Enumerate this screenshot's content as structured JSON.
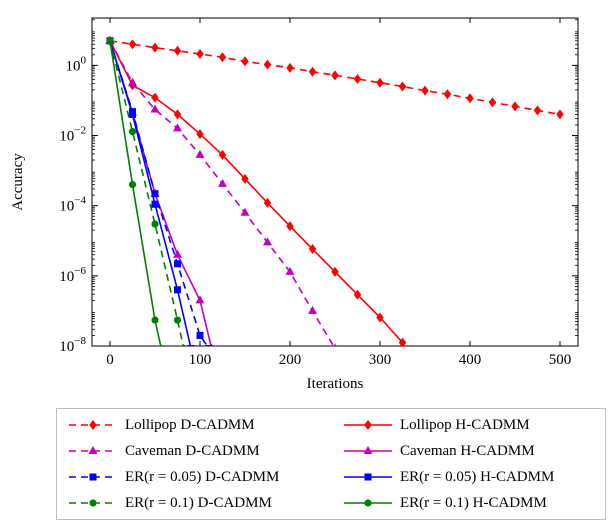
{
  "chart_data": {
    "type": "line",
    "xlabel": "Iterations",
    "ylabel": "Accuracy",
    "xlim": [
      -20,
      520
    ],
    "ylim_log10": [
      -8,
      1.35
    ],
    "y_scale": "log",
    "x_ticks": [
      0,
      100,
      200,
      300,
      400,
      500
    ],
    "x_tick_labels": [
      "0",
      "100",
      "200",
      "300",
      "400",
      "500"
    ],
    "y_ticks_log10": [
      0,
      -2,
      -4,
      -6,
      -8
    ],
    "y_tick_labels": [
      {
        "base": "10",
        "exp": "0"
      },
      {
        "base": "10",
        "exp": "−2"
      },
      {
        "base": "10",
        "exp": "−4"
      },
      {
        "base": "10",
        "exp": "−6"
      },
      {
        "base": "10",
        "exp": "−8"
      }
    ],
    "grid": false,
    "legend_position": "below",
    "series": [
      {
        "name": "Lollipop D-CADMM",
        "color": "#ff0000",
        "dash": true,
        "marker": "diamond",
        "x": [
          0,
          25,
          50,
          75,
          100,
          125,
          150,
          175,
          200,
          225,
          250,
          275,
          300,
          325,
          350,
          375,
          400,
          425,
          450,
          475,
          500
        ],
        "y": [
          5,
          4,
          3.2,
          2.6,
          2.1,
          1.7,
          1.3,
          1.05,
          0.85,
          0.66,
          0.52,
          0.41,
          0.32,
          0.25,
          0.19,
          0.15,
          0.115,
          0.088,
          0.068,
          0.052,
          0.04
        ]
      },
      {
        "name": "Lollipop H-CADMM",
        "color": "#ff0000",
        "dash": false,
        "marker": "diamond",
        "x": [
          0,
          25,
          50,
          75,
          100,
          125,
          150,
          175,
          200,
          225,
          250,
          275,
          300,
          325
        ],
        "y": [
          5,
          0.27,
          0.12,
          0.04,
          0.011,
          0.0028,
          0.00058,
          0.00012,
          2.6e-05,
          5.8e-06,
          1.3e-06,
          2.9e-07,
          6.5e-08,
          1.25e-08
        ]
      },
      {
        "name": "Caveman D-CADMM",
        "color": "#bf00bf",
        "dash": true,
        "marker": "triangle",
        "x": [
          0,
          25,
          50,
          75,
          100,
          125,
          150,
          175,
          200,
          225,
          250
        ],
        "y": [
          5,
          0.32,
          0.055,
          0.016,
          0.0028,
          0.00042,
          6.3e-05,
          9e-06,
          1.3e-06,
          1e-07,
          8.5e-09
        ]
      },
      {
        "name": "Caveman H-CADMM",
        "color": "#bf00bf",
        "dash": false,
        "marker": "triangle",
        "x": [
          0,
          25,
          50,
          75,
          100,
          113
        ],
        "y": [
          5,
          0.045,
          0.00022,
          4e-06,
          2e-07,
          8.5e-09
        ]
      },
      {
        "name": "ER(r = 0.05) D-CADMM",
        "color": "#0000ff",
        "dash": true,
        "marker": "square",
        "x": [
          0,
          25,
          50,
          75,
          100,
          110
        ],
        "y": [
          5,
          0.048,
          0.00022,
          2.2e-06,
          2e-08,
          8.5e-09
        ]
      },
      {
        "name": "ER(r = 0.05) H-CADMM",
        "color": "#0000ff",
        "dash": false,
        "marker": "square",
        "x": [
          0,
          25,
          50,
          75,
          90
        ],
        "y": [
          5,
          0.04,
          0.00011,
          4e-07,
          8.5e-09
        ]
      },
      {
        "name": "ER(r = 0.1) D-CADMM",
        "color": "#008000",
        "dash": true,
        "marker": "circle",
        "x": [
          0,
          25,
          50,
          75,
          82
        ],
        "y": [
          5,
          0.013,
          3e-05,
          5.5e-08,
          8.5e-09
        ]
      },
      {
        "name": "ER(r = 0.1) H-CADMM",
        "color": "#008000",
        "dash": false,
        "marker": "circle",
        "x": [
          0,
          25,
          50,
          57
        ],
        "y": [
          5,
          0.0004,
          5.5e-08,
          8.5e-09
        ]
      }
    ]
  },
  "legend": {
    "items": [
      {
        "name": "Lollipop D-CADMM",
        "label": "Lollipop D-CADMM",
        "color": "#ff0000",
        "dash": true,
        "marker": "diamond"
      },
      {
        "name": "Lollipop H-CADMM",
        "label": "Lollipop H-CADMM",
        "color": "#ff0000",
        "dash": false,
        "marker": "diamond"
      },
      {
        "name": "Caveman D-CADMM",
        "label": "Caveman D-CADMM",
        "color": "#bf00bf",
        "dash": true,
        "marker": "triangle"
      },
      {
        "name": "Caveman H-CADMM",
        "label": "Caveman H-CADMM",
        "color": "#bf00bf",
        "dash": false,
        "marker": "triangle"
      },
      {
        "name": "ER(r = 0.05) D-CADMM",
        "label": "ER(r = 0.05) D-CADMM",
        "color": "#0000ff",
        "dash": true,
        "marker": "square"
      },
      {
        "name": "ER(r = 0.05) H-CADMM",
        "label": "ER(r = 0.05) H-CADMM",
        "color": "#0000ff",
        "dash": false,
        "marker": "square"
      },
      {
        "name": "ER(r = 0.1) D-CADMM",
        "label": "ER(r = 0.1) D-CADMM",
        "color": "#008000",
        "dash": true,
        "marker": "circle"
      },
      {
        "name": "ER(r = 0.1) H-CADMM",
        "label": "ER(r = 0.1) H-CADMM",
        "color": "#008000",
        "dash": false,
        "marker": "circle"
      }
    ]
  }
}
